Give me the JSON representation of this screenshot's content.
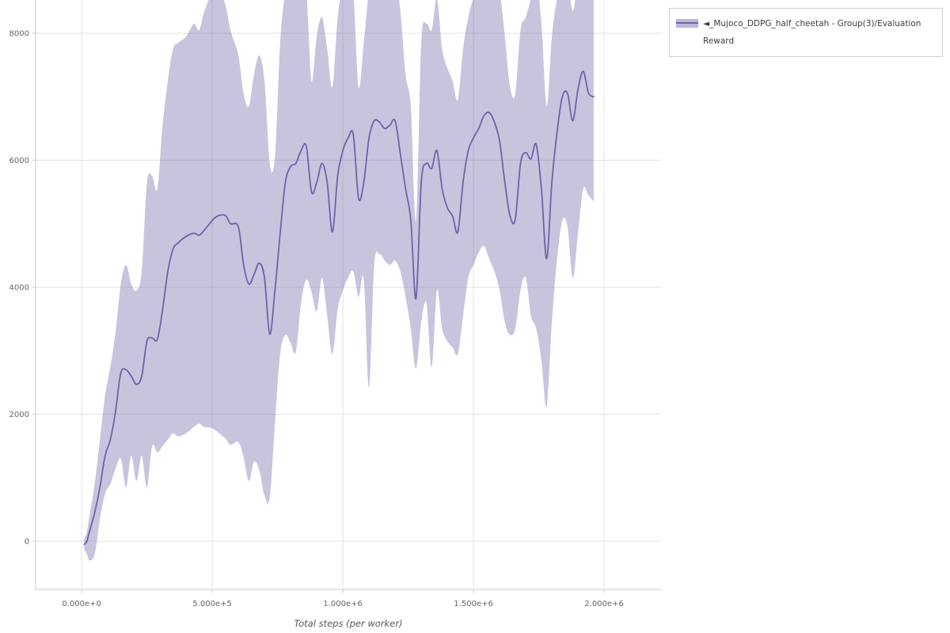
{
  "colors": {
    "background": "#ffffff",
    "grid": "#e3e3e3",
    "axis": "#c9c9c9",
    "tick_text": "#666666",
    "legend_border": "#cfcfcf",
    "legend_text": "#3d3d3d"
  },
  "chart_data": {
    "type": "line",
    "title": "",
    "xlabel": "Total steps (per worker)",
    "ylabel": "",
    "grid": true,
    "x_unit_multiplier": 1000000,
    "xlim": [
      -0.176,
      2.218
    ],
    "ylim": [
      -760,
      8523
    ],
    "x_ticks": {
      "values": [
        0,
        0.5,
        1.0,
        1.5,
        2.0
      ],
      "labels": [
        "0.000e+0",
        "5.000e+5",
        "1.000e+6",
        "1.500e+6",
        "2.000e+6"
      ]
    },
    "y_ticks": {
      "values": [
        0,
        2000,
        4000,
        6000,
        8000
      ],
      "labels": [
        "0",
        "2000",
        "4000",
        "6000",
        "8000"
      ]
    },
    "legend": {
      "position": "outside-top-right",
      "entries": [
        {
          "label": "◄_Mujoco_DDPG_half_cheetah - Group(3)/Evaluation Reward"
        }
      ]
    },
    "series": [
      {
        "name": "◄_Mujoco_DDPG_half_cheetah - Group(3)/Evaluation Reward",
        "line_color": "#6b64a9",
        "band_opacity": 0.38,
        "x_e6": [
          0.01,
          0.02,
          0.03,
          0.05,
          0.07,
          0.09,
          0.11,
          0.13,
          0.15,
          0.17,
          0.19,
          0.21,
          0.23,
          0.25,
          0.27,
          0.29,
          0.31,
          0.33,
          0.35,
          0.37,
          0.4,
          0.43,
          0.45,
          0.47,
          0.5,
          0.52,
          0.55,
          0.57,
          0.6,
          0.62,
          0.64,
          0.66,
          0.68,
          0.7,
          0.72,
          0.74,
          0.76,
          0.78,
          0.8,
          0.82,
          0.84,
          0.86,
          0.88,
          0.9,
          0.92,
          0.94,
          0.96,
          0.98,
          1.0,
          1.02,
          1.04,
          1.06,
          1.08,
          1.1,
          1.12,
          1.14,
          1.16,
          1.18,
          1.2,
          1.22,
          1.24,
          1.26,
          1.28,
          1.3,
          1.32,
          1.34,
          1.36,
          1.38,
          1.4,
          1.42,
          1.44,
          1.46,
          1.48,
          1.5,
          1.52,
          1.54,
          1.56,
          1.58,
          1.6,
          1.62,
          1.64,
          1.66,
          1.68,
          1.7,
          1.72,
          1.74,
          1.76,
          1.78,
          1.8,
          1.82,
          1.84,
          1.86,
          1.88,
          1.9,
          1.92,
          1.94,
          1.96
        ],
        "mean": [
          -50,
          0,
          150,
          450,
          850,
          1350,
          1600,
          2050,
          2650,
          2700,
          2600,
          2470,
          2600,
          3150,
          3200,
          3180,
          3650,
          4250,
          4600,
          4700,
          4800,
          4850,
          4820,
          4900,
          5050,
          5120,
          5130,
          5000,
          4950,
          4350,
          4050,
          4200,
          4380,
          4150,
          3260,
          3950,
          4850,
          5650,
          5900,
          5950,
          6150,
          6220,
          5500,
          5650,
          5950,
          5650,
          4870,
          5750,
          6150,
          6350,
          6400,
          5400,
          5650,
          6350,
          6620,
          6600,
          6500,
          6550,
          6620,
          6100,
          5550,
          5050,
          3820,
          5650,
          5950,
          5870,
          6150,
          5550,
          5250,
          5120,
          4870,
          5650,
          6150,
          6350,
          6500,
          6700,
          6750,
          6600,
          6300,
          5650,
          5120,
          5070,
          5950,
          6120,
          6020,
          6250,
          5550,
          4450,
          5650,
          6450,
          7000,
          7050,
          6620,
          7120,
          7400,
          7060,
          7000
        ],
        "band_lower": [
          -120,
          -200,
          -300,
          -200,
          350,
          750,
          900,
          1150,
          1300,
          850,
          1350,
          950,
          1350,
          850,
          1500,
          1400,
          1500,
          1600,
          1700,
          1650,
          1700,
          1800,
          1850,
          1800,
          1780,
          1720,
          1620,
          1520,
          1560,
          1320,
          950,
          1250,
          1120,
          720,
          680,
          1850,
          2950,
          3250,
          3120,
          2980,
          3750,
          4120,
          3920,
          3620,
          4150,
          3550,
          2950,
          3650,
          3950,
          4150,
          4250,
          3850,
          4120,
          2420,
          4350,
          4520,
          4420,
          4350,
          4420,
          4250,
          3850,
          3350,
          2720,
          3450,
          3750,
          2750,
          3950,
          3350,
          3150,
          3050,
          2950,
          3550,
          4150,
          4350,
          4550,
          4650,
          4450,
          4250,
          3950,
          3450,
          3250,
          3350,
          3950,
          4150,
          3550,
          3350,
          2850,
          2120,
          3450,
          4450,
          5050,
          4950,
          4150,
          4850,
          5550,
          5450,
          5350
        ],
        "band_upper": [
          20,
          150,
          400,
          900,
          1600,
          2300,
          2750,
          3300,
          4050,
          4350,
          4050,
          3950,
          4250,
          5650,
          5750,
          5550,
          6550,
          7250,
          7750,
          7850,
          7950,
          8150,
          8050,
          8350,
          8650,
          8750,
          8450,
          8050,
          7650,
          7050,
          6850,
          7350,
          7650,
          7250,
          5950,
          6050,
          7850,
          8650,
          8750,
          8850,
          8750,
          8650,
          7250,
          7950,
          8250,
          7750,
          7150,
          8250,
          8750,
          8850,
          8650,
          7150,
          7850,
          8650,
          8850,
          8750,
          8650,
          8750,
          8850,
          8350,
          7350,
          6850,
          5050,
          7850,
          8150,
          8050,
          8550,
          7750,
          7450,
          7250,
          6950,
          7750,
          8250,
          8550,
          8750,
          8850,
          8950,
          8750,
          8650,
          7950,
          7150,
          7050,
          8050,
          8250,
          8550,
          8850,
          8150,
          6850,
          7950,
          8550,
          8950,
          8850,
          8350,
          8850,
          9050,
          8650,
          8550
        ]
      }
    ]
  }
}
